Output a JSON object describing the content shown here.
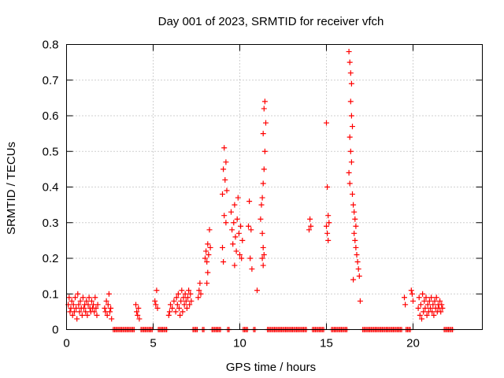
{
  "chart_data": {
    "type": "scatter",
    "title": "Day 001 of 2023, SRMTID for receiver vfch",
    "xlabel": "GPS time / hours",
    "ylabel": "SRMTID / TECUs",
    "xlim": [
      0,
      24
    ],
    "ylim": [
      0,
      0.8
    ],
    "x_ticks": [
      0,
      5,
      10,
      15,
      20
    ],
    "x_tick_labels": [
      "0",
      "5",
      "10",
      "15",
      "20"
    ],
    "y_ticks": [
      0,
      0.1,
      0.2,
      0.3,
      0.4,
      0.5,
      0.6,
      0.7,
      0.8
    ],
    "y_tick_labels": [
      "0",
      "0.1",
      "0.2",
      "0.3",
      "0.4",
      "0.5",
      "0.6",
      "0.7",
      "0.8"
    ],
    "grid": true,
    "marker": "+",
    "series": [
      {
        "name": "SRMTID",
        "color": "#ff0000",
        "points": [
          [
            0.1,
            0.07
          ],
          [
            0.15,
            0.09
          ],
          [
            0.2,
            0.05
          ],
          [
            0.25,
            0.06
          ],
          [
            0.3,
            0.08
          ],
          [
            0.35,
            0.04
          ],
          [
            0.4,
            0.07
          ],
          [
            0.45,
            0.05
          ],
          [
            0.5,
            0.09
          ],
          [
            0.55,
            0.06
          ],
          [
            0.6,
            0.03
          ],
          [
            0.65,
            0.1
          ],
          [
            0.7,
            0.07
          ],
          [
            0.75,
            0.05
          ],
          [
            0.8,
            0.08
          ],
          [
            0.85,
            0.06
          ],
          [
            0.9,
            0.04
          ],
          [
            0.95,
            0.09
          ],
          [
            1.0,
            0.06
          ],
          [
            1.05,
            0.07
          ],
          [
            1.1,
            0.05
          ],
          [
            1.15,
            0.08
          ],
          [
            1.2,
            0.04
          ],
          [
            1.25,
            0.07
          ],
          [
            1.3,
            0.09
          ],
          [
            1.35,
            0.06
          ],
          [
            1.4,
            0.05
          ],
          [
            1.45,
            0.08
          ],
          [
            1.5,
            0.06
          ],
          [
            1.55,
            0.07
          ],
          [
            1.6,
            0.05
          ],
          [
            1.65,
            0.09
          ],
          [
            1.7,
            0.06
          ],
          [
            1.75,
            0.04
          ],
          [
            1.8,
            0.07
          ],
          [
            2.2,
            0.06
          ],
          [
            2.25,
            0.05
          ],
          [
            2.3,
            0.08
          ],
          [
            2.35,
            0.04
          ],
          [
            2.4,
            0.07
          ],
          [
            2.45,
            0.1
          ],
          [
            2.5,
            0.05
          ],
          [
            2.55,
            0.06
          ],
          [
            2.6,
            0.03
          ],
          [
            4.0,
            0.07
          ],
          [
            4.05,
            0.05
          ],
          [
            4.1,
            0.04
          ],
          [
            4.15,
            0.06
          ],
          [
            4.2,
            0.03
          ],
          [
            5.1,
            0.08
          ],
          [
            5.15,
            0.07
          ],
          [
            5.2,
            0.11
          ],
          [
            5.25,
            0.06
          ],
          [
            5.9,
            0.04
          ],
          [
            5.95,
            0.05
          ],
          [
            6.0,
            0.07
          ],
          [
            6.1,
            0.06
          ],
          [
            6.2,
            0.08
          ],
          [
            6.3,
            0.05
          ],
          [
            6.35,
            0.09
          ],
          [
            6.4,
            0.07
          ],
          [
            6.45,
            0.1
          ],
          [
            6.5,
            0.06
          ],
          [
            6.55,
            0.04
          ],
          [
            6.6,
            0.08
          ],
          [
            6.65,
            0.11
          ],
          [
            6.7,
            0.05
          ],
          [
            6.75,
            0.09
          ],
          [
            6.8,
            0.07
          ],
          [
            6.85,
            0.1
          ],
          [
            6.9,
            0.08
          ],
          [
            6.95,
            0.06
          ],
          [
            7.0,
            0.09
          ],
          [
            7.05,
            0.11
          ],
          [
            7.1,
            0.07
          ],
          [
            7.15,
            0.1
          ],
          [
            7.2,
            0.08
          ],
          [
            7.6,
            0.09
          ],
          [
            7.65,
            0.11
          ],
          [
            7.7,
            0.13
          ],
          [
            7.75,
            0.1
          ],
          [
            8.0,
            0.2
          ],
          [
            8.05,
            0.22
          ],
          [
            8.1,
            0.19
          ],
          [
            8.15,
            0.24
          ],
          [
            8.2,
            0.21
          ],
          [
            8.25,
            0.28
          ],
          [
            8.3,
            0.23
          ],
          [
            8.1,
            0.13
          ],
          [
            8.15,
            0.16
          ],
          [
            9.0,
            0.38
          ],
          [
            9.05,
            0.45
          ],
          [
            9.1,
            0.51
          ],
          [
            9.15,
            0.42
          ],
          [
            9.2,
            0.47
          ],
          [
            9.25,
            0.39
          ],
          [
            9.1,
            0.32
          ],
          [
            9.2,
            0.3
          ],
          [
            9.0,
            0.23
          ],
          [
            9.05,
            0.19
          ],
          [
            9.5,
            0.33
          ],
          [
            9.55,
            0.28
          ],
          [
            9.6,
            0.24
          ],
          [
            9.65,
            0.3
          ],
          [
            9.7,
            0.35
          ],
          [
            9.75,
            0.26
          ],
          [
            9.8,
            0.22
          ],
          [
            9.85,
            0.31
          ],
          [
            9.9,
            0.37
          ],
          [
            9.95,
            0.27
          ],
          [
            10.0,
            0.21
          ],
          [
            10.05,
            0.29
          ],
          [
            10.1,
            0.2
          ],
          [
            10.15,
            0.25
          ],
          [
            9.7,
            0.18
          ],
          [
            10.5,
            0.29
          ],
          [
            10.55,
            0.36
          ],
          [
            10.6,
            0.2
          ],
          [
            10.65,
            0.28
          ],
          [
            10.7,
            0.17
          ],
          [
            11.0,
            0.11
          ],
          [
            11.2,
            0.31
          ],
          [
            11.25,
            0.35
          ],
          [
            11.3,
            0.37
          ],
          [
            11.35,
            0.41
          ],
          [
            11.4,
            0.45
          ],
          [
            11.35,
            0.55
          ],
          [
            11.4,
            0.62
          ],
          [
            11.45,
            0.64
          ],
          [
            11.5,
            0.58
          ],
          [
            11.45,
            0.5
          ],
          [
            11.3,
            0.27
          ],
          [
            11.35,
            0.23
          ],
          [
            11.4,
            0.21
          ],
          [
            11.3,
            0.2
          ],
          [
            11.35,
            0.18
          ],
          [
            14.0,
            0.28
          ],
          [
            14.05,
            0.31
          ],
          [
            14.1,
            0.29
          ],
          [
            15.0,
            0.58
          ],
          [
            15.05,
            0.4
          ],
          [
            15.1,
            0.32
          ],
          [
            15.15,
            0.3
          ],
          [
            15.05,
            0.27
          ],
          [
            15.1,
            0.25
          ],
          [
            15.0,
            0.29
          ],
          [
            16.3,
            0.78
          ],
          [
            16.35,
            0.75
          ],
          [
            16.4,
            0.72
          ],
          [
            16.45,
            0.69
          ],
          [
            16.4,
            0.64
          ],
          [
            16.45,
            0.6
          ],
          [
            16.5,
            0.57
          ],
          [
            16.35,
            0.54
          ],
          [
            16.4,
            0.5
          ],
          [
            16.45,
            0.47
          ],
          [
            16.3,
            0.44
          ],
          [
            16.35,
            0.41
          ],
          [
            16.5,
            0.38
          ],
          [
            16.55,
            0.35
          ],
          [
            16.6,
            0.33
          ],
          [
            16.65,
            0.31
          ],
          [
            16.7,
            0.29
          ],
          [
            16.6,
            0.27
          ],
          [
            16.65,
            0.25
          ],
          [
            16.7,
            0.23
          ],
          [
            16.75,
            0.21
          ],
          [
            16.8,
            0.19
          ],
          [
            16.85,
            0.17
          ],
          [
            16.9,
            0.15
          ],
          [
            16.95,
            0.08
          ],
          [
            16.55,
            0.14
          ],
          [
            19.5,
            0.09
          ],
          [
            19.55,
            0.07
          ],
          [
            19.9,
            0.11
          ],
          [
            19.95,
            0.1
          ],
          [
            20.0,
            0.08
          ],
          [
            20.3,
            0.06
          ],
          [
            20.35,
            0.09
          ],
          [
            20.4,
            0.04
          ],
          [
            20.45,
            0.07
          ],
          [
            20.5,
            0.03
          ],
          [
            20.55,
            0.1
          ],
          [
            20.6,
            0.05
          ],
          [
            20.65,
            0.08
          ],
          [
            20.7,
            0.06
          ],
          [
            20.75,
            0.09
          ],
          [
            20.8,
            0.04
          ],
          [
            20.85,
            0.07
          ],
          [
            20.9,
            0.05
          ],
          [
            20.95,
            0.08
          ],
          [
            21.0,
            0.06
          ],
          [
            21.05,
            0.09
          ],
          [
            21.1,
            0.05
          ],
          [
            21.15,
            0.07
          ],
          [
            21.2,
            0.04
          ],
          [
            21.25,
            0.08
          ],
          [
            21.3,
            0.06
          ],
          [
            21.35,
            0.09
          ],
          [
            21.4,
            0.05
          ],
          [
            21.45,
            0.07
          ],
          [
            21.5,
            0.06
          ],
          [
            21.55,
            0.08
          ],
          [
            21.6,
            0.05
          ],
          [
            21.65,
            0.07
          ],
          [
            21.7,
            0.06
          ]
        ],
        "zero_bands": [
          [
            2.7,
            3.9
          ],
          [
            4.3,
            5.0
          ],
          [
            5.3,
            5.8
          ],
          [
            7.3,
            7.55
          ],
          [
            7.85,
            7.95
          ],
          [
            8.4,
            8.9
          ],
          [
            9.3,
            9.45
          ],
          [
            10.2,
            10.45
          ],
          [
            10.8,
            10.95
          ],
          [
            11.6,
            13.9
          ],
          [
            14.2,
            14.9
          ],
          [
            15.3,
            16.2
          ],
          [
            17.1,
            19.4
          ],
          [
            19.6,
            19.85
          ],
          [
            21.8,
            22.3
          ]
        ]
      }
    ]
  }
}
